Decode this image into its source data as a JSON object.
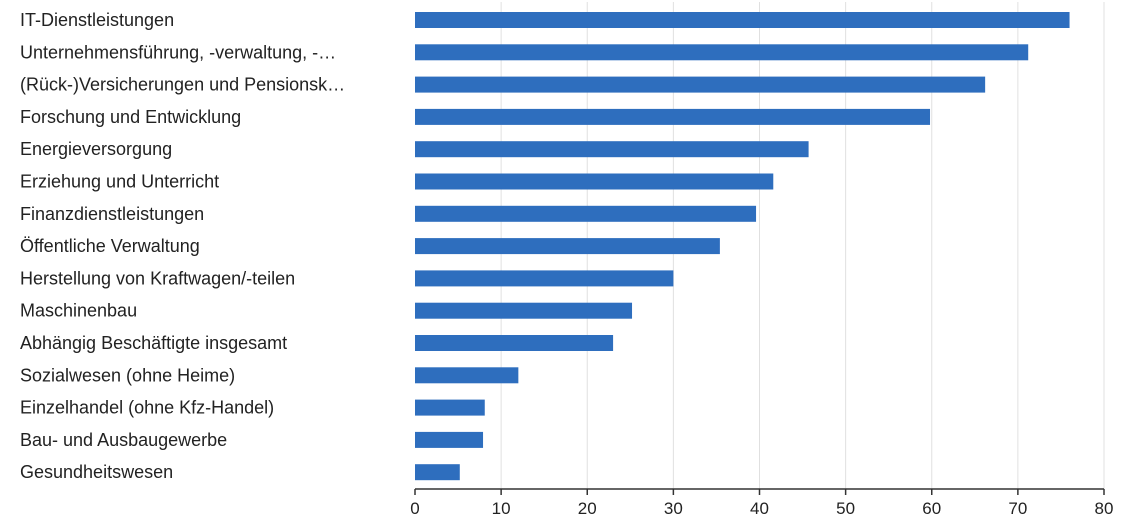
{
  "chart_data": {
    "type": "bar",
    "orientation": "horizontal",
    "categories": [
      "IT-Dienstleistungen",
      "Unternehmensführung, -verwaltung, -…",
      "(Rück-)Versicherungen und Pensionsk…",
      "Forschung und Entwicklung",
      "Energieversorgung",
      "Erziehung und Unterricht",
      "Finanzdienstleistungen",
      "Öffentliche Verwaltung",
      "Herstellung von Kraftwagen/-teilen",
      "Maschinenbau",
      "Abhängig Beschäftigte insgesamt",
      "Sozialwesen (ohne Heime)",
      "Einzelhandel (ohne Kfz-Handel)",
      "Bau- und Ausbaugewerbe",
      "Gesundheitswesen"
    ],
    "values": [
      76.0,
      71.2,
      66.2,
      59.8,
      45.7,
      41.6,
      39.6,
      35.4,
      30.0,
      25.2,
      23.0,
      12.0,
      8.1,
      7.9,
      5.2
    ],
    "xlim": [
      0,
      80
    ],
    "xticks": [
      "0",
      "10",
      "20",
      "30",
      "40",
      "50",
      "60",
      "70",
      "80"
    ],
    "grid": true,
    "bar_color": "#2e6ebe",
    "title": "",
    "xlabel": "",
    "ylabel": ""
  }
}
